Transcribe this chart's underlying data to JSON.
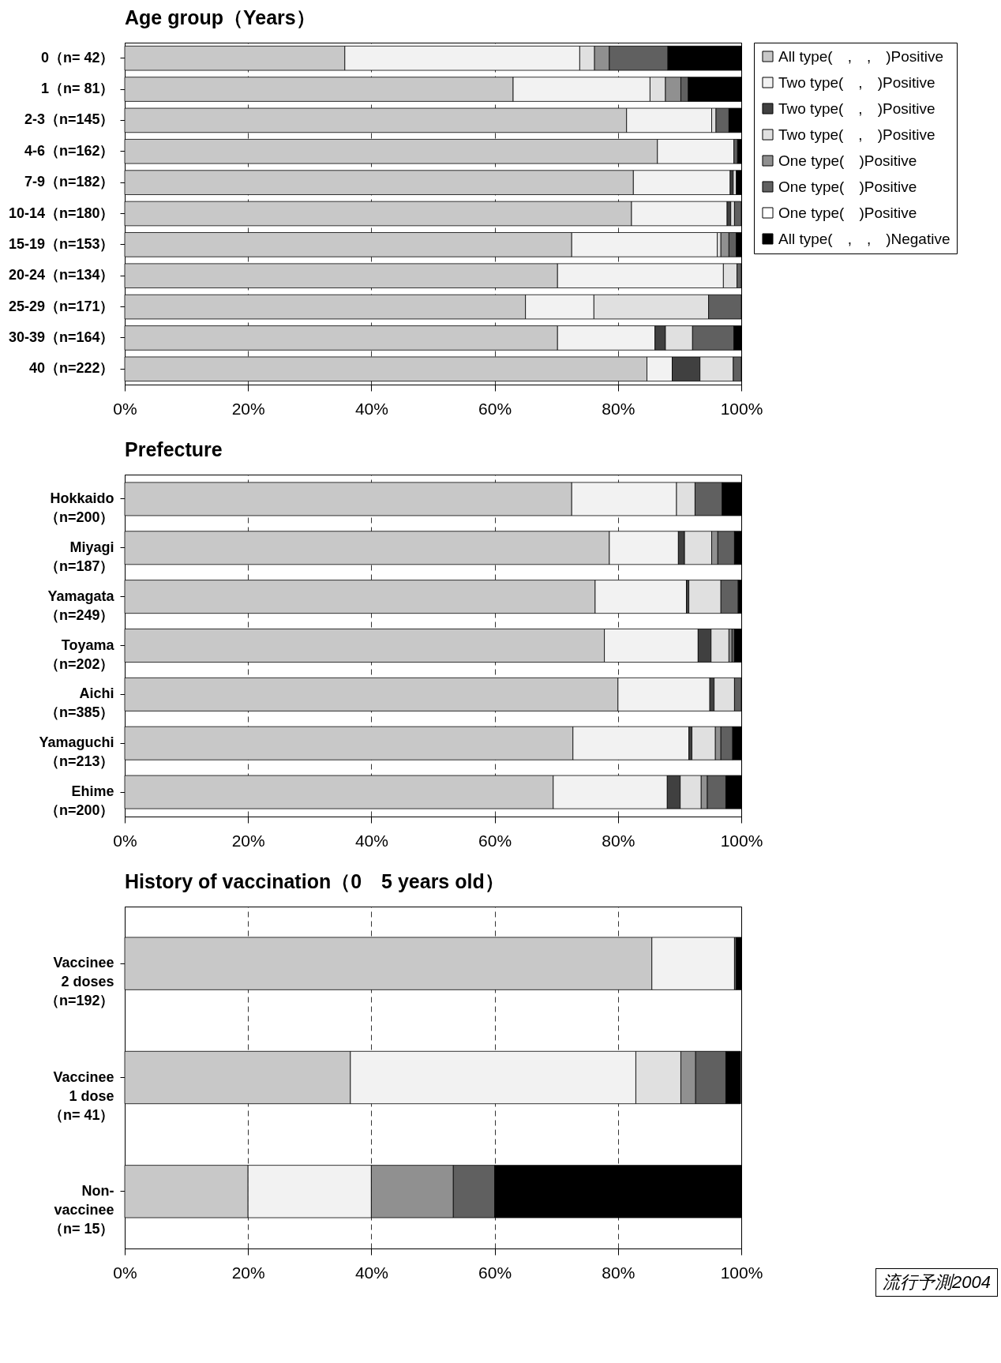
{
  "chart_data": [
    {
      "type": "bar",
      "orientation": "horizontal",
      "stacked": true,
      "title": "Age group（Years）",
      "legend": "right",
      "grid": "x",
      "categories": [
        "0（n= 42）",
        "1（n= 81）",
        "2-3（n=145）",
        "4-6（n=162）",
        "7-9（n=182）",
        "10-14（n=180）",
        "15-19（n=153）",
        "20-24（n=134）",
        "25-29（n=171）",
        "30-39（n=164）",
        "40（n=222）"
      ],
      "xlim": [
        0,
        100
      ],
      "xticks": [
        {
          "value": 0,
          "label": "0%"
        },
        {
          "value": 20,
          "label": "20%"
        },
        {
          "value": 40,
          "label": "40%"
        },
        {
          "value": 60,
          "label": "60%"
        },
        {
          "value": 80,
          "label": "80%"
        },
        {
          "value": 100,
          "label": "100%"
        }
      ],
      "series": [
        {
          "name": "All type(　,　,　)Positive",
          "color": "#c8c8c8",
          "values": [
            35.7,
            63.0,
            81.4,
            86.4,
            82.5,
            82.2,
            72.5,
            70.2,
            65.0,
            70.2,
            84.7
          ]
        },
        {
          "name": "Two type(　,　)Positive",
          "color": "#f2f2f2",
          "values": [
            38.1,
            22.2,
            13.8,
            12.4,
            15.7,
            15.5,
            23.6,
            26.9,
            11.1,
            15.8,
            4.1
          ]
        },
        {
          "name": "Two type(　,　)Positive",
          "color": "#404040",
          "values": [
            0,
            0,
            0,
            0,
            0.5,
            0.6,
            0,
            0,
            0,
            1.7,
            4.5
          ]
        },
        {
          "name": "Two type(　,　)Positive",
          "color": "#e0e0e0",
          "values": [
            2.4,
            2.5,
            0.7,
            0,
            0.5,
            0.6,
            0.6,
            2.2,
            18.6,
            4.4,
            5.4
          ]
        },
        {
          "name": "One type(　)Positive",
          "color": "#909090",
          "values": [
            2.4,
            2.5,
            0,
            0,
            0,
            0,
            1.3,
            0,
            0,
            0,
            0
          ]
        },
        {
          "name": "One type(　)Positive",
          "color": "#606060",
          "values": [
            9.5,
            1.2,
            2.1,
            0.6,
            0,
            1.1,
            1.2,
            0.7,
            5.3,
            6.7,
            1.3
          ]
        },
        {
          "name": "One type(　)Positive",
          "color": "#ffffff",
          "values": [
            0,
            0,
            0,
            0,
            0,
            0,
            0,
            0,
            0,
            0,
            0
          ]
        },
        {
          "name": "All type(　,　,　)Negative",
          "color": "#000000",
          "values": [
            11.9,
            8.6,
            2.0,
            0.6,
            0.8,
            0,
            0.8,
            0,
            0,
            1.2,
            0
          ]
        }
      ]
    },
    {
      "type": "bar",
      "orientation": "horizontal",
      "stacked": true,
      "title": "Prefecture",
      "grid": "x",
      "categories": [
        "Hokkaido\n（n=200）",
        "Miyagi\n（n=187）",
        "Yamagata\n（n=249）",
        "Toyama\n（n=202）",
        "Aichi\n（n=385）",
        "Yamaguchi\n（n=213）",
        "Ehime\n（n=200）"
      ],
      "xlim": [
        0,
        100
      ],
      "xticks": [
        {
          "value": 0,
          "label": "0%"
        },
        {
          "value": 20,
          "label": "20%"
        },
        {
          "value": 40,
          "label": "40%"
        },
        {
          "value": 60,
          "label": "60%"
        },
        {
          "value": 80,
          "label": "80%"
        },
        {
          "value": 100,
          "label": "100%"
        }
      ],
      "series": [
        {
          "color": "#c8c8c8",
          "values": [
            72.5,
            78.6,
            76.3,
            77.8,
            80.0,
            72.7,
            69.5
          ]
        },
        {
          "color": "#f2f2f2",
          "values": [
            17.0,
            11.2,
            14.8,
            15.2,
            14.9,
            18.8,
            18.5
          ]
        },
        {
          "color": "#404040",
          "values": [
            0,
            1.0,
            0.4,
            2.1,
            0.7,
            0.5,
            2.1
          ]
        },
        {
          "color": "#e0e0e0",
          "values": [
            3.0,
            4.4,
            5.2,
            2.9,
            3.3,
            3.8,
            3.4
          ]
        },
        {
          "color": "#909090",
          "values": [
            0,
            1.0,
            0,
            0.5,
            0,
            0.9,
            1.0
          ]
        },
        {
          "color": "#606060",
          "values": [
            4.4,
            2.7,
            2.8,
            0.4,
            1.1,
            1.9,
            3.0
          ]
        },
        {
          "color": "#ffffff",
          "values": [
            0,
            0,
            0,
            0,
            0,
            0,
            0
          ]
        },
        {
          "color": "#000000",
          "values": [
            3.1,
            1.1,
            0.5,
            1.1,
            0,
            1.4,
            2.5
          ]
        }
      ]
    },
    {
      "type": "bar",
      "orientation": "horizontal",
      "stacked": true,
      "title": "History of vaccination（0　5 years old）",
      "grid": "x",
      "categories": [
        "Vaccinee\n2 doses\n（n=192）",
        "Vaccinee\n1 dose\n（n= 41）",
        "Non-\nvaccinee\n（n= 15）"
      ],
      "xlim": [
        0,
        100
      ],
      "xticks": [
        {
          "value": 0,
          "label": "0%"
        },
        {
          "value": 20,
          "label": "20%"
        },
        {
          "value": 40,
          "label": "40%"
        },
        {
          "value": 60,
          "label": "60%"
        },
        {
          "value": 80,
          "label": "80%"
        },
        {
          "value": 100,
          "label": "100%"
        }
      ],
      "annotations": [
        "流行予測2004"
      ],
      "series": [
        {
          "color": "#c8c8c8",
          "values": [
            85.5,
            36.6,
            20
          ]
        },
        {
          "color": "#f2f2f2",
          "values": [
            13.4,
            46.3,
            20
          ]
        },
        {
          "color": "#404040",
          "values": [
            0,
            0,
            0
          ]
        },
        {
          "color": "#e0e0e0",
          "values": [
            0,
            7.3,
            0
          ]
        },
        {
          "color": "#909090",
          "values": [
            0,
            2.4,
            13.3
          ]
        },
        {
          "color": "#606060",
          "values": [
            0.3,
            4.9,
            6.7
          ]
        },
        {
          "color": "#ffffff",
          "values": [
            0,
            0,
            0
          ]
        },
        {
          "color": "#000000",
          "values": [
            0.8,
            2.4,
            40
          ]
        }
      ]
    }
  ]
}
